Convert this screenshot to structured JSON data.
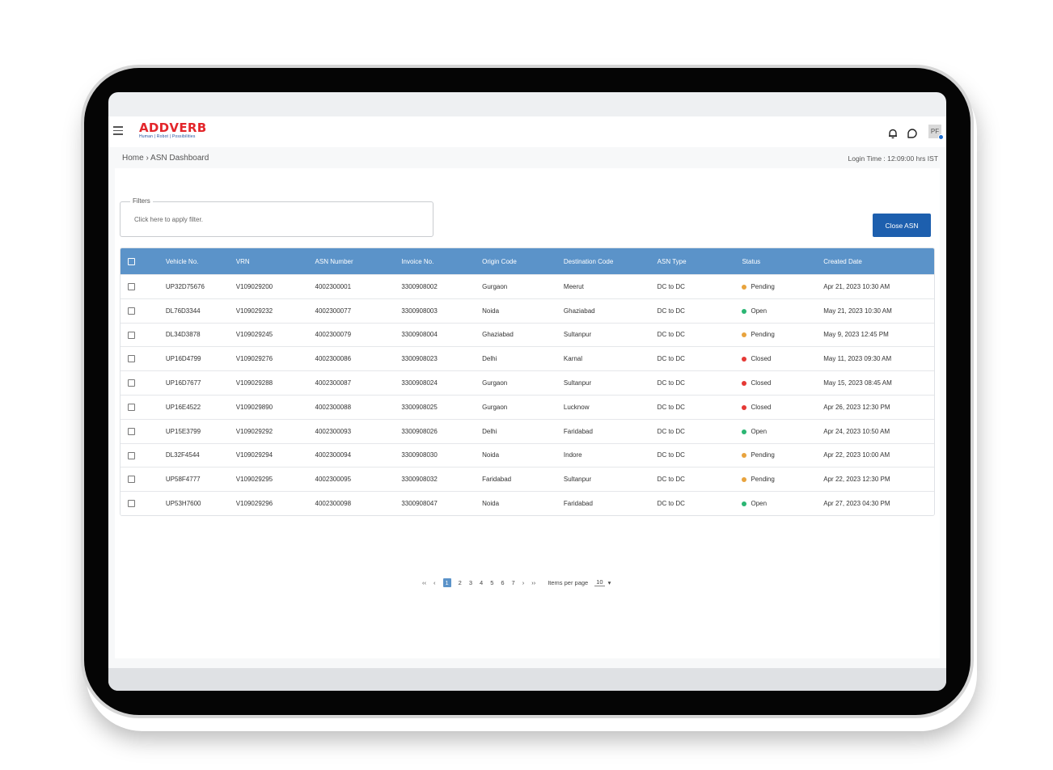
{
  "header": {
    "logo_text": "ADDVERB",
    "logo_tagline": "Human | Robot | Possibilities",
    "avatar_initials": "PF"
  },
  "breadcrumb": {
    "home": "Home",
    "separator": "›",
    "current": "ASN Dashboard"
  },
  "login_time": "Login Time : 12:09:00 hrs IST",
  "filters": {
    "legend": "Filters",
    "hint": "Click here to apply filter."
  },
  "close_button": "Close ASN",
  "table": {
    "columns": [
      "Vehicle No.",
      "VRN",
      "ASN Number",
      "Invoice No.",
      "Origin Code",
      "Destination Code",
      "ASN Type",
      "Status",
      "Created Date"
    ],
    "rows": [
      {
        "vehicle": "UP32D75676",
        "vrn": "V109029200",
        "asn": "4002300001",
        "invoice": "3300908002",
        "origin": "Gurgaon",
        "destination": "Meerut",
        "type": "DC to DC",
        "status": "Pending",
        "status_color": "#e8a33d",
        "created": "Apr 21, 2023  10:30 AM"
      },
      {
        "vehicle": "DL76D3344",
        "vrn": "V109029232",
        "asn": "4002300077",
        "invoice": "3300908003",
        "origin": "Noida",
        "destination": "Ghaziabad",
        "type": "DC to DC",
        "status": "Open",
        "status_color": "#2bb673",
        "created": "May 21, 2023  10:30 AM"
      },
      {
        "vehicle": "DL34D3878",
        "vrn": "V109029245",
        "asn": "4002300079",
        "invoice": "3300908004",
        "origin": "Ghaziabad",
        "destination": "Sultanpur",
        "type": "DC to DC",
        "status": "Pending",
        "status_color": "#e8a33d",
        "created": "May 9, 2023  12:45 PM"
      },
      {
        "vehicle": "UP16D4799",
        "vrn": "V109029276",
        "asn": "4002300086",
        "invoice": "3300908023",
        "origin": "Delhi",
        "destination": "Karnal",
        "type": "DC to DC",
        "status": "Closed",
        "status_color": "#e53935",
        "created": "May 11, 2023  09:30 AM"
      },
      {
        "vehicle": "UP16D7677",
        "vrn": "V109029288",
        "asn": "4002300087",
        "invoice": "3300908024",
        "origin": "Gurgaon",
        "destination": "Sultanpur",
        "type": "DC to DC",
        "status": "Closed",
        "status_color": "#e53935",
        "created": "May 15, 2023  08:45 AM"
      },
      {
        "vehicle": "UP16E4522",
        "vrn": "V109029890",
        "asn": "4002300088",
        "invoice": "3300908025",
        "origin": "Gurgaon",
        "destination": "Lucknow",
        "type": "DC to DC",
        "status": "Closed",
        "status_color": "#e53935",
        "created": "Apr 26, 2023  12:30 PM"
      },
      {
        "vehicle": "UP15E3799",
        "vrn": "V109029292",
        "asn": "4002300093",
        "invoice": "3300908026",
        "origin": "Delhi",
        "destination": "Faridabad",
        "type": "DC to DC",
        "status": "Open",
        "status_color": "#2bb673",
        "created": "Apr 24, 2023  10:50 AM"
      },
      {
        "vehicle": "DL32F4544",
        "vrn": "V109029294",
        "asn": "4002300094",
        "invoice": "3300908030",
        "origin": "Noida",
        "destination": "Indore",
        "type": "DC to DC",
        "status": "Pending",
        "status_color": "#e8a33d",
        "created": "Apr 22, 2023  10:00 AM"
      },
      {
        "vehicle": "UP58F4777",
        "vrn": "V109029295",
        "asn": "4002300095",
        "invoice": "3300908032",
        "origin": "Faridabad",
        "destination": "Sultanpur",
        "type": "DC to DC",
        "status": "Pending",
        "status_color": "#e8a33d",
        "created": "Apr 22, 2023  12:30 PM"
      },
      {
        "vehicle": "UP53H7600",
        "vrn": "V109029296",
        "asn": "4002300098",
        "invoice": "3300908047",
        "origin": "Noida",
        "destination": "Faridabad",
        "type": "DC to DC",
        "status": "Open",
        "status_color": "#2bb673",
        "created": "Apr 27, 2023  04:30 PM"
      }
    ]
  },
  "pagination": {
    "first": "‹‹",
    "prev": "‹",
    "next": "›",
    "last": "››",
    "pages": [
      "1",
      "2",
      "3",
      "4",
      "5",
      "6",
      "7"
    ],
    "active_page": "1",
    "items_per_page_label": "Items per page",
    "items_per_page_value": "10",
    "dropdown_arrow": "▾"
  },
  "colors": {
    "accent": "#5b93c9",
    "button": "#1d5fae",
    "brand_red": "#e3262b"
  },
  "icons": [
    "menu-icon",
    "bell-icon",
    "chat-icon"
  ]
}
